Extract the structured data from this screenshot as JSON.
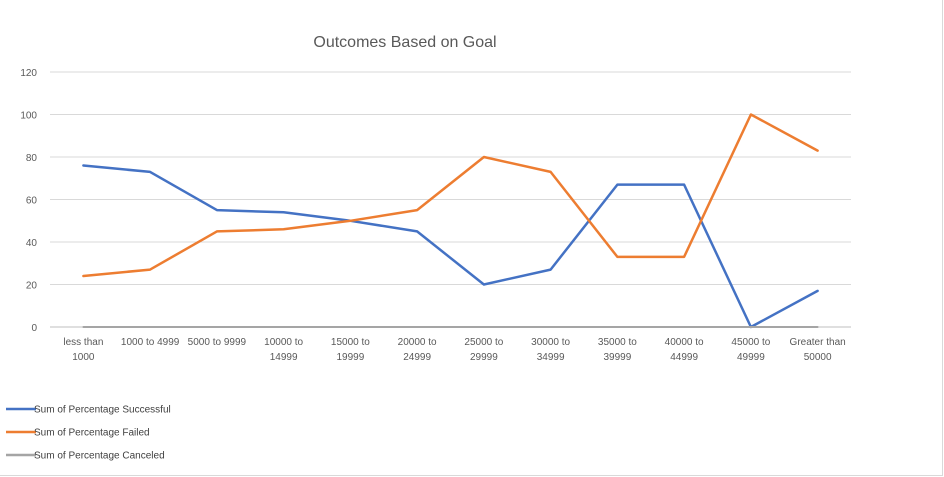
{
  "chart_data": {
    "type": "line",
    "title": "Outcomes Based on Goal",
    "xlabel": "",
    "ylabel": "",
    "ylim": [
      0,
      120
    ],
    "yticks": [
      0,
      20,
      40,
      60,
      80,
      100,
      120
    ],
    "grid": true,
    "legend_position": "bottom-left",
    "categories": [
      [
        "less than",
        "1000"
      ],
      [
        "1000 to 4999"
      ],
      [
        "5000 to 9999"
      ],
      [
        "10000 to",
        "14999"
      ],
      [
        "15000 to",
        "19999"
      ],
      [
        "20000 to",
        "24999"
      ],
      [
        "25000 to",
        "29999"
      ],
      [
        "30000 to",
        "34999"
      ],
      [
        "35000 to",
        "39999"
      ],
      [
        "40000 to",
        "44999"
      ],
      [
        "45000 to",
        "49999"
      ],
      [
        "Greater than",
        "50000"
      ]
    ],
    "series": [
      {
        "name": "Sum of Percentage Successful",
        "color": "#4472c4",
        "values": [
          76,
          73,
          55,
          54,
          50,
          45,
          20,
          27,
          67,
          67,
          0,
          17
        ]
      },
      {
        "name": "Sum of Percentage Failed",
        "color": "#ed7d31",
        "values": [
          24,
          27,
          45,
          46,
          50,
          55,
          80,
          73,
          33,
          33,
          100,
          83
        ]
      },
      {
        "name": "Sum of Percentage Canceled",
        "color": "#a5a5a5",
        "values": [
          0,
          0,
          0,
          0,
          0,
          0,
          0,
          0,
          0,
          0,
          0,
          0
        ]
      }
    ]
  }
}
